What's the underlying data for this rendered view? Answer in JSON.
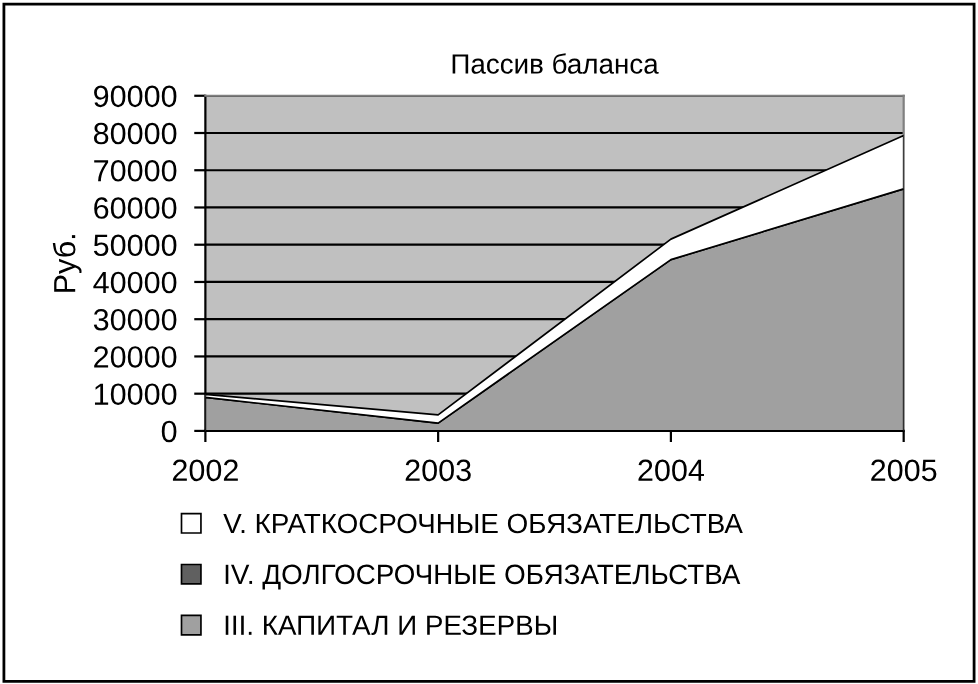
{
  "chart_data": {
    "type": "area",
    "stacked": true,
    "title": "Пассив баланса",
    "ylabel": "Руб.",
    "categories": [
      "2002",
      "2003",
      "2004",
      "2005"
    ],
    "series": [
      {
        "name": "III. КАПИТАЛ И РЕЗЕРВЫ",
        "color": "#a0a0a0",
        "values": [
          9000,
          2100,
          46000,
          65000
        ]
      },
      {
        "name": "IV. ДОЛГОСРОЧНЫЕ ОБЯЗАТЕЛЬСТВА",
        "color": "#606060",
        "values": [
          null,
          null,
          null,
          null
        ]
      },
      {
        "name": "V. КРАТКОСРОЧНЫЕ ОБЯЗАТЕЛЬСТВА",
        "color": "#ffffff",
        "values": [
          800,
          2200,
          5500,
          14300
        ]
      }
    ],
    "ylim": [
      0,
      90000
    ],
    "yticks": [
      0,
      10000,
      20000,
      30000,
      40000,
      50000,
      60000,
      70000,
      80000,
      90000
    ],
    "grid": "y",
    "legend": "bottom"
  }
}
